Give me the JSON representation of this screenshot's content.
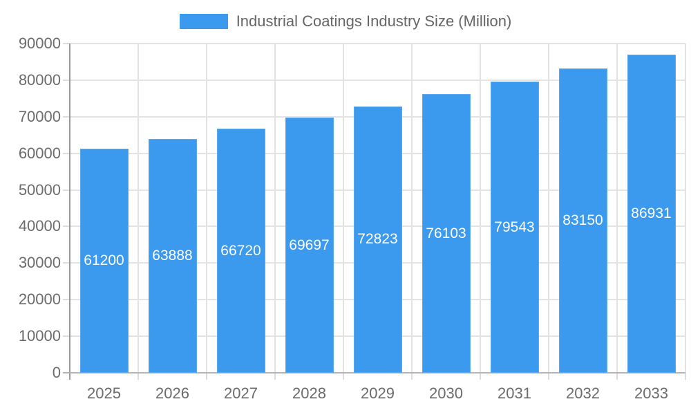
{
  "chart_data": {
    "type": "bar",
    "title": "Industrial Coatings Industry Size (Million)",
    "legend": "Industrial Coatings Industry Size (Million)",
    "legend_position": "top-center",
    "categories": [
      "2025",
      "2026",
      "2027",
      "2028",
      "2029",
      "2030",
      "2031",
      "2032",
      "2033"
    ],
    "values": [
      61200,
      63888,
      66720,
      69697,
      72823,
      76103,
      79543,
      83150,
      86931
    ],
    "xlabel": "",
    "ylabel": "",
    "ylim": [
      0,
      90000
    ],
    "ytick_step": 10000,
    "yticks": [
      0,
      10000,
      20000,
      30000,
      40000,
      50000,
      60000,
      70000,
      80000,
      90000
    ],
    "grid": true,
    "value_label_position": "inside-center",
    "colors": {
      "bar": "#3b99ee",
      "bar_border": "#5aa8f0",
      "value_label": "#ffffff",
      "axis_text": "#6b6b6b",
      "legend_text": "#666666",
      "grid_line": "#e3e3e3",
      "tick_line": "#dcdcdc",
      "y_axis_line": "#9a9a9a",
      "x_axis_line": "#b5b5b5",
      "background": "#ffffff"
    }
  }
}
